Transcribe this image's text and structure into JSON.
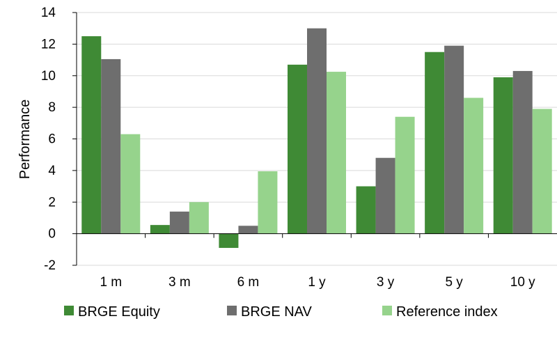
{
  "chart_data": {
    "type": "bar",
    "title": "",
    "xlabel": "",
    "ylabel": "Performance",
    "ylim": [
      -2,
      14
    ],
    "yticks": [
      -2,
      0,
      2,
      4,
      6,
      8,
      10,
      12,
      14
    ],
    "grid": true,
    "legend_position": "bottom",
    "categories": [
      "1 m",
      "3 m",
      "6 m",
      "1 y",
      "3 y",
      "5 y",
      "10 y"
    ],
    "series": [
      {
        "name": "BRGE Equity",
        "color": "#3f8a35",
        "values": [
          12.5,
          0.55,
          -0.9,
          10.7,
          3.0,
          11.5,
          9.9
        ]
      },
      {
        "name": "BRGE NAV",
        "color": "#6e6e6e",
        "values": [
          11.05,
          1.4,
          0.5,
          13.0,
          4.8,
          11.9,
          10.3
        ]
      },
      {
        "name": "Reference index",
        "color": "#96d38c",
        "values": [
          6.3,
          2.0,
          3.95,
          10.25,
          7.4,
          8.6,
          7.9
        ]
      }
    ]
  }
}
